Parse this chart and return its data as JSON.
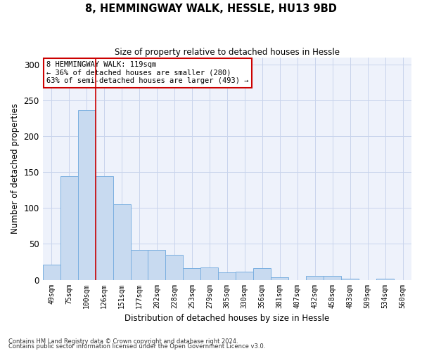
{
  "title": "8, HEMMINGWAY WALK, HESSLE, HU13 9BD",
  "subtitle": "Size of property relative to detached houses in Hessle",
  "xlabel": "Distribution of detached houses by size in Hessle",
  "ylabel": "Number of detached properties",
  "categories": [
    "49sqm",
    "75sqm",
    "100sqm",
    "126sqm",
    "151sqm",
    "177sqm",
    "202sqm",
    "228sqm",
    "253sqm",
    "279sqm",
    "305sqm",
    "330sqm",
    "356sqm",
    "381sqm",
    "407sqm",
    "432sqm",
    "458sqm",
    "483sqm",
    "509sqm",
    "534sqm",
    "560sqm"
  ],
  "values": [
    21,
    144,
    236,
    144,
    105,
    42,
    42,
    35,
    16,
    17,
    10,
    11,
    16,
    3,
    0,
    5,
    5,
    2,
    0,
    2,
    0
  ],
  "bar_color": "#c8daf0",
  "bar_edge_color": "#7aafe0",
  "property_line_x": 2.5,
  "annotation_lines": [
    "8 HEMMINGWAY WALK: 119sqm",
    "← 36% of detached houses are smaller (280)",
    "63% of semi-detached houses are larger (493) →"
  ],
  "annotation_box_color": "#ffffff",
  "annotation_box_edge_color": "#cc0000",
  "property_line_color": "#cc0000",
  "grid_color": "#c8d4ec",
  "background_color": "#eef2fb",
  "ylim": [
    0,
    310
  ],
  "yticks": [
    0,
    50,
    100,
    150,
    200,
    250,
    300
  ],
  "footer1": "Contains HM Land Registry data © Crown copyright and database right 2024.",
  "footer2": "Contains public sector information licensed under the Open Government Licence v3.0."
}
